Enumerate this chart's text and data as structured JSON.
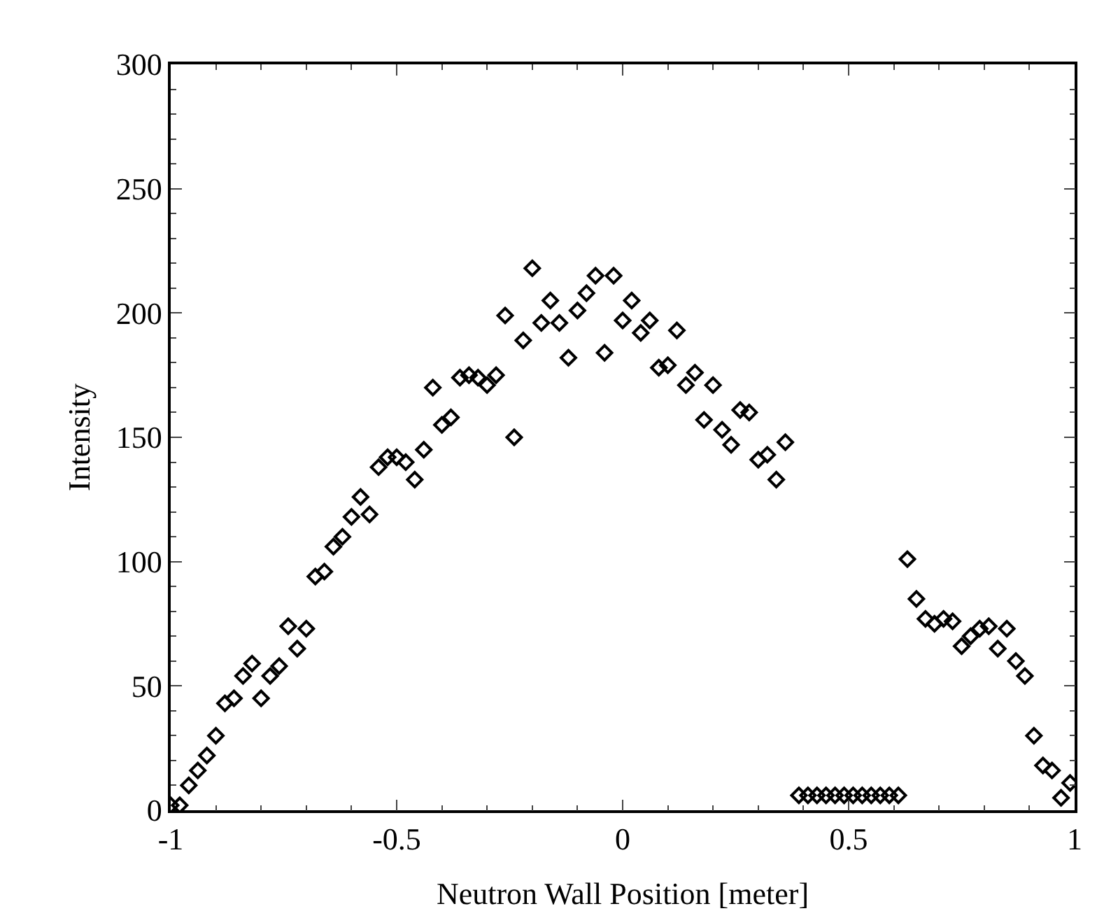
{
  "chart_data": {
    "type": "scatter",
    "xlabel": "Neutron Wall Position [meter]",
    "ylabel": "Intensity",
    "x": [
      -1,
      -0.98,
      -0.96,
      -0.94,
      -0.92,
      -0.9,
      -0.88,
      -0.86,
      -0.84,
      -0.82,
      -0.8,
      -0.78,
      -0.76,
      -0.74,
      -0.72,
      -0.7,
      -0.68,
      -0.66,
      -0.64,
      -0.62,
      -0.6,
      -0.58,
      -0.56,
      -0.54,
      -0.52,
      -0.5,
      -0.48,
      -0.46,
      -0.44,
      -0.42,
      -0.4,
      -0.38,
      -0.36,
      -0.34,
      -0.32,
      -0.3,
      -0.28,
      -0.26,
      -0.24,
      -0.22,
      -0.2,
      -0.18,
      -0.16,
      -0.14,
      -0.12,
      -0.1,
      -0.08,
      -0.06,
      -0.04,
      -0.02,
      0,
      0.02,
      0.04,
      0.06,
      0.08,
      0.1,
      0.12,
      0.14,
      0.16,
      0.18,
      0.2,
      0.22,
      0.24,
      0.26,
      0.28,
      0.3,
      0.32,
      0.34,
      0.36,
      0.39,
      0.41,
      0.43,
      0.45,
      0.47,
      0.49,
      0.51,
      0.53,
      0.55,
      0.57,
      0.59,
      0.61,
      0.63,
      0.65,
      0.67,
      0.69,
      0.71,
      0.73,
      0.75,
      0.77,
      0.79,
      0.81,
      0.83,
      0.85,
      0.87,
      0.89,
      0.91,
      0.93,
      0.95,
      0.97,
      0.99
    ],
    "series": [
      {
        "color": "#000000",
        "values": [
          2,
          2,
          10,
          16,
          22,
          30,
          43,
          45,
          54,
          59,
          45,
          54,
          58,
          74,
          65,
          73,
          94,
          96,
          106,
          110,
          118,
          126,
          119,
          138,
          142,
          142,
          140,
          133,
          145,
          170,
          155,
          158,
          174,
          175,
          174,
          171,
          175,
          199,
          150,
          189,
          218,
          196,
          205,
          196,
          182,
          201,
          208,
          215,
          184,
          215,
          197,
          205,
          192,
          197,
          178,
          179,
          193,
          171,
          176,
          157,
          171,
          153,
          147,
          161,
          160,
          141,
          143,
          133,
          148,
          6,
          6,
          6,
          6,
          6,
          6,
          6,
          6,
          6,
          6,
          6,
          6,
          101,
          85,
          77,
          75,
          77,
          76,
          66,
          70,
          73,
          74,
          65,
          73,
          60,
          54,
          30,
          18,
          16,
          5,
          11
        ]
      }
    ],
    "xlim": [
      -1,
      1
    ],
    "xticks": [
      -1,
      -0.5,
      0,
      0.5,
      1
    ],
    "ylim": [
      0,
      300
    ],
    "yticks": [
      0,
      50,
      100,
      150,
      200,
      250,
      300
    ],
    "marker": "diamond",
    "grid": false
  }
}
